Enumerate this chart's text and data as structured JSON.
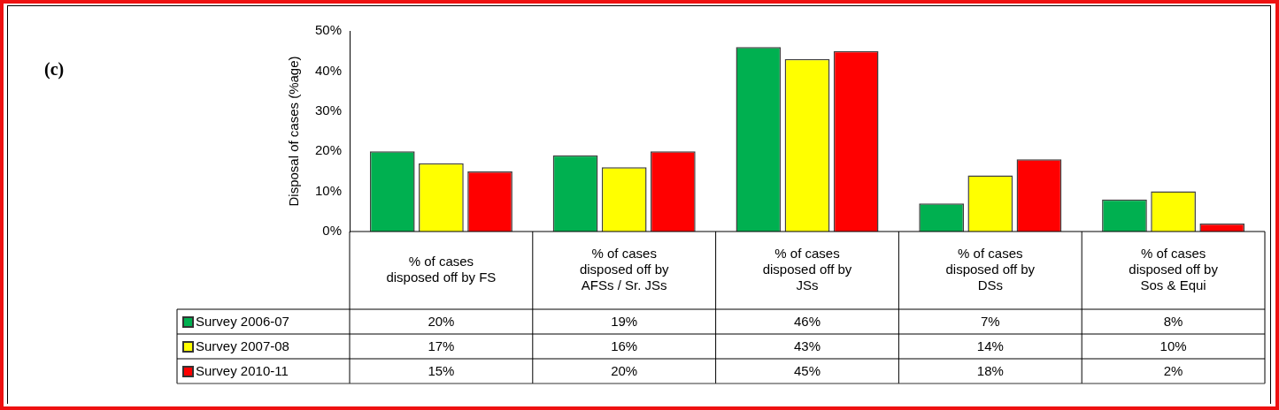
{
  "chart_data": {
    "type": "bar",
    "ylabel": "Disposal of cases (%age)",
    "annotations": [
      "(c)"
    ],
    "categories": [
      "% of cases disposed off by FS",
      "% of cases disposed off by AFSs / Sr. JSs",
      "% of cases disposed off by JSs",
      "% of cases disposed off by DSs",
      "% of cases disposed off by Sos & Equi"
    ],
    "series": [
      {
        "name": "Survey 2006-07",
        "color": "#00b050",
        "values": [
          20,
          19,
          46,
          7,
          8
        ],
        "value_labels": [
          "20%",
          "19%",
          "46%",
          "7%",
          "8%"
        ]
      },
      {
        "name": "Survey 2007-08",
        "color": "#ffff00",
        "values": [
          17,
          16,
          43,
          14,
          10
        ],
        "value_labels": [
          "17%",
          "16%",
          "43%",
          "14%",
          "10%"
        ]
      },
      {
        "name": "Survey 2010-11",
        "color": "#ff0000",
        "values": [
          15,
          20,
          45,
          18,
          2
        ],
        "value_labels": [
          "15%",
          "20%",
          "45%",
          "18%",
          "2%"
        ]
      }
    ],
    "ylim": [
      0,
      50
    ],
    "yticks": [
      {
        "value": 0,
        "label": "0%"
      },
      {
        "value": 10,
        "label": "10%"
      },
      {
        "value": 20,
        "label": "20%"
      },
      {
        "value": 30,
        "label": "30%"
      },
      {
        "value": 40,
        "label": "40%"
      },
      {
        "value": 50,
        "label": "50%"
      }
    ],
    "grid": false,
    "legend": "bottom"
  }
}
